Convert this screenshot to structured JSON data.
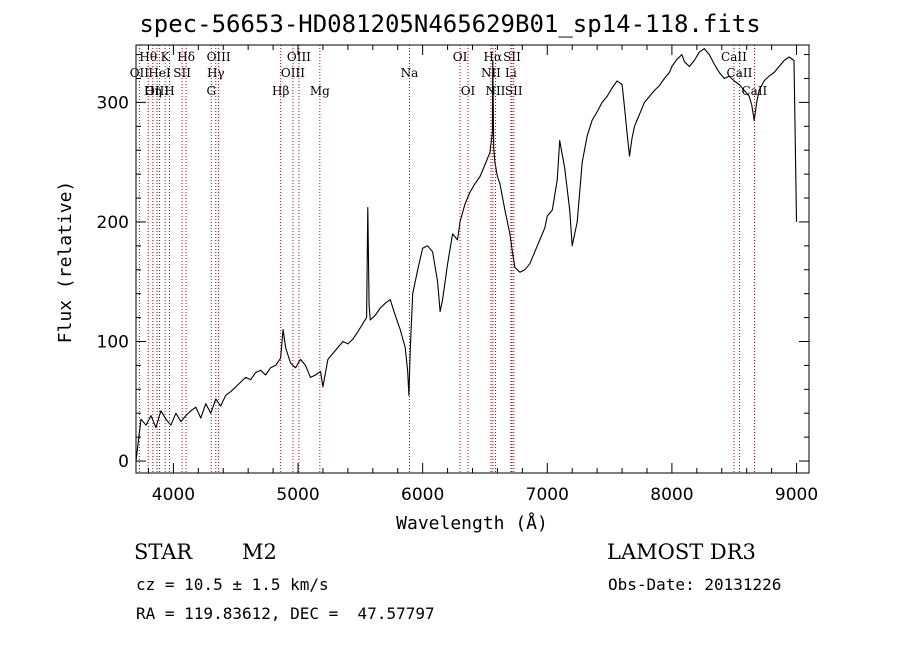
{
  "chart_data": {
    "type": "line",
    "title": "spec-56653-HD081205N465629B01_sp14-118.fits",
    "xlabel": "Wavelength (Å)",
    "ylabel": "Flux (relative)",
    "xlim": [
      3700,
      9100
    ],
    "ylim": [
      -10,
      348
    ],
    "x_ticks": [
      4000,
      5000,
      6000,
      7000,
      8000,
      9000
    ],
    "y_ticks": [
      0,
      100,
      200,
      300
    ],
    "series": [
      {
        "name": "spectrum",
        "x": [
          3700,
          3740,
          3780,
          3820,
          3860,
          3900,
          3940,
          3980,
          4020,
          4060,
          4100,
          4140,
          4180,
          4220,
          4260,
          4300,
          4340,
          4380,
          4420,
          4460,
          4500,
          4540,
          4580,
          4620,
          4660,
          4700,
          4740,
          4780,
          4820,
          4860,
          4880,
          4900,
          4940,
          4980,
          5020,
          5060,
          5100,
          5140,
          5180,
          5200,
          5240,
          5280,
          5320,
          5360,
          5400,
          5440,
          5480,
          5520,
          5550,
          5560,
          5570,
          5580,
          5620,
          5660,
          5700,
          5740,
          5780,
          5820,
          5860,
          5880,
          5890,
          5900,
          5920,
          5960,
          6000,
          6040,
          6080,
          6120,
          6140,
          6160,
          6200,
          6240,
          6280,
          6300,
          6340,
          6380,
          6420,
          6460,
          6500,
          6540,
          6560,
          6563,
          6570,
          6580,
          6600,
          6620,
          6660,
          6700,
          6720,
          6740,
          6780,
          6820,
          6860,
          6900,
          6940,
          6980,
          7000,
          7040,
          7080,
          7100,
          7140,
          7180,
          7200,
          7240,
          7280,
          7320,
          7360,
          7400,
          7440,
          7480,
          7520,
          7560,
          7600,
          7620,
          7640,
          7660,
          7680,
          7700,
          7740,
          7780,
          7820,
          7860,
          7900,
          7940,
          7980,
          8000,
          8040,
          8080,
          8100,
          8140,
          8180,
          8220,
          8260,
          8300,
          8340,
          8380,
          8420,
          8460,
          8500,
          8540,
          8580,
          8620,
          8640,
          8660,
          8680,
          8700,
          8740,
          8780,
          8820,
          8860,
          8900,
          8940,
          8980,
          9000
        ],
        "y": [
          0,
          35,
          30,
          38,
          28,
          42,
          35,
          30,
          40,
          33,
          38,
          42,
          45,
          36,
          48,
          40,
          52,
          46,
          55,
          58,
          62,
          66,
          70,
          68,
          74,
          76,
          72,
          78,
          80,
          86,
          110,
          95,
          82,
          78,
          85,
          80,
          70,
          72,
          75,
          62,
          85,
          90,
          95,
          100,
          98,
          102,
          108,
          115,
          120,
          212,
          130,
          118,
          122,
          128,
          132,
          135,
          122,
          110,
          95,
          75,
          55,
          92,
          140,
          160,
          178,
          180,
          175,
          150,
          125,
          135,
          165,
          190,
          185,
          200,
          215,
          225,
          232,
          238,
          248,
          258,
          275,
          335,
          262,
          250,
          238,
          232,
          210,
          190,
          175,
          162,
          158,
          160,
          165,
          175,
          185,
          195,
          205,
          210,
          235,
          268,
          245,
          210,
          180,
          200,
          250,
          272,
          285,
          292,
          300,
          305,
          312,
          318,
          315,
          296,
          275,
          255,
          270,
          280,
          290,
          300,
          305,
          310,
          314,
          320,
          325,
          330,
          336,
          340,
          334,
          330,
          335,
          342,
          345,
          340,
          332,
          325,
          320,
          322,
          318,
          315,
          310,
          305,
          298,
          285,
          300,
          310,
          318,
          322,
          325,
          330,
          335,
          338,
          335,
          200
        ]
      }
    ],
    "annotations": [
      {
        "label": "Hθ",
        "x": 3798,
        "row": 0
      },
      {
        "label": "OII",
        "x": 3727,
        "row": 1
      },
      {
        "label": "OIII",
        "x": 3869,
        "row": 2
      },
      {
        "label": "Hη",
        "x": 3835,
        "row": 2
      },
      {
        "label": "HeI",
        "x": 3889,
        "row": 1
      },
      {
        "label": "K",
        "x": 3934,
        "row": 0
      },
      {
        "label": "SII",
        "x": 4070,
        "row": 1
      },
      {
        "label": "H",
        "x": 3969,
        "row": 2
      },
      {
        "label": "Hδ",
        "x": 4102,
        "row": 0
      },
      {
        "label": "OIII",
        "x": 4363,
        "row": 0
      },
      {
        "label": "Hγ",
        "x": 4340,
        "row": 1
      },
      {
        "label": "G",
        "x": 4304,
        "row": 2
      },
      {
        "label": "Hβ",
        "x": 4861,
        "row": 2
      },
      {
        "label": "OIII",
        "x": 5007,
        "row": 0
      },
      {
        "label": "OIII",
        "x": 4959,
        "row": 1
      },
      {
        "label": "Mg",
        "x": 5175,
        "row": 2
      },
      {
        "label": "Na",
        "x": 5894,
        "row": 1
      },
      {
        "label": "OI",
        "x": 6300,
        "row": 0
      },
      {
        "label": "OI",
        "x": 6364,
        "row": 2
      },
      {
        "label": "Hα",
        "x": 6563,
        "row": 0
      },
      {
        "label": "NII",
        "x": 6548,
        "row": 1
      },
      {
        "label": "NII",
        "x": 6584,
        "row": 2
      },
      {
        "label": "SII",
        "x": 6717,
        "row": 0
      },
      {
        "label": "Li",
        "x": 6708,
        "row": 1
      },
      {
        "label": "SII",
        "x": 6731,
        "row": 2
      },
      {
        "label": "CaII",
        "x": 8498,
        "row": 0
      },
      {
        "label": "CaII",
        "x": 8542,
        "row": 1
      },
      {
        "label": "CaII",
        "x": 8662,
        "row": 2
      }
    ]
  },
  "info": {
    "object_class": "STAR",
    "subclass": "M2",
    "cz": "cz = 10.5 ± 1.5 km/s",
    "radec": "RA = 119.83612, DEC =  47.57797",
    "survey": "LAMOST DR3",
    "obs_date": "Obs-Date: 20131226"
  }
}
